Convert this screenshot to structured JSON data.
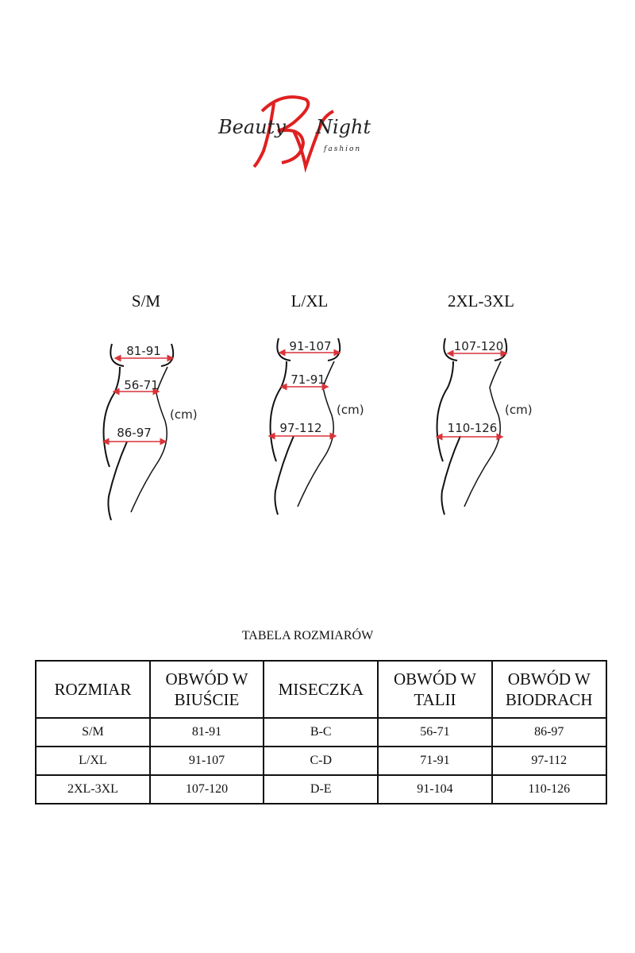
{
  "logo": {
    "text": "Beauty Night",
    "subtext": "fashion",
    "colors": {
      "monogram": "#e02020",
      "text": "#222222"
    }
  },
  "figures": [
    {
      "size": "S/M",
      "bust": "81-91",
      "waist": "56-71",
      "hips": "86-97",
      "unit": "(cm)"
    },
    {
      "size": "L/XL",
      "bust": "91-107",
      "waist": "71-91",
      "hips": "97-112",
      "unit": "(cm)"
    },
    {
      "size": "2XL-3XL",
      "bust": "107-120",
      "hips": "110-126",
      "unit": "(cm)"
    }
  ],
  "arrow_color": "#d9343a",
  "table": {
    "title": "TABELA ROZMIARÓW",
    "headers": [
      "ROZMIAR",
      "OBWÓD W BIUŚCIE",
      "MISECZKA",
      "OBWÓD W TALII",
      "OBWÓD W BIODRACH"
    ],
    "rows": [
      [
        "S/M",
        "81-91",
        "B-C",
        "56-71",
        "86-97"
      ],
      [
        "L/XL",
        "91-107",
        "C-D",
        "71-91",
        "97-112"
      ],
      [
        "2XL-3XL",
        "107-120",
        "D-E",
        "91-104",
        "110-126"
      ]
    ]
  }
}
